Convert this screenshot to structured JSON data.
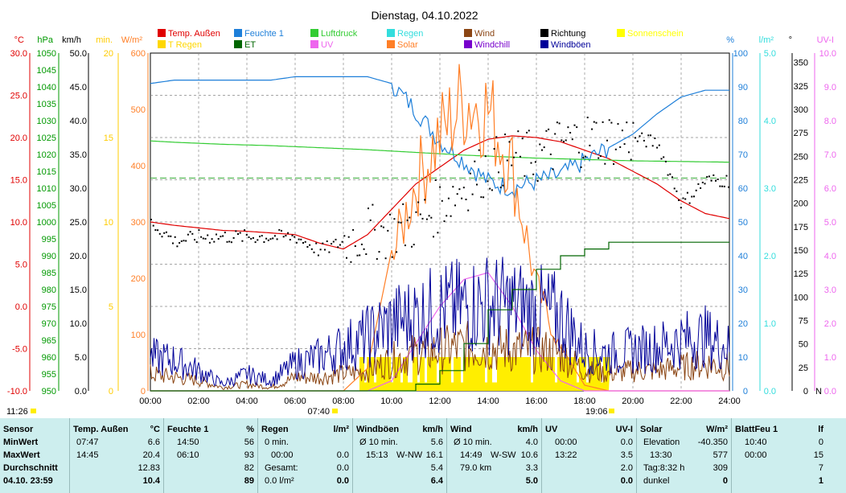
{
  "title": "Dienstag, 04.10.2022",
  "legend": [
    {
      "name": "Temp. Außen",
      "color": "#e00000"
    },
    {
      "name": "Feuchte 1",
      "color": "#1e7fd9"
    },
    {
      "name": "Luftdruck",
      "color": "#33cc33"
    },
    {
      "name": "Regen",
      "color": "#33dddd"
    },
    {
      "name": "Wind",
      "color": "#8b4513"
    },
    {
      "name": "Richtung",
      "color": "#000000"
    },
    {
      "name": "Sonnenschein",
      "color": "#ffff00"
    },
    {
      "name": "T Regen",
      "color": "#ffd700"
    },
    {
      "name": "ET",
      "color": "#006600"
    },
    {
      "name": "UV",
      "color": "#ee66ee"
    },
    {
      "name": "Solar",
      "color": "#ff7f27"
    },
    {
      "name": "Windchill",
      "color": "#7700cc"
    },
    {
      "name": "Windböen",
      "color": "#000099"
    }
  ],
  "axes": {
    "temp": {
      "unit": "°C",
      "color": "#e00000",
      "ticks": [
        "30.0",
        "25.0",
        "20.0",
        "15.0",
        "10.0",
        "5.0",
        "0.0",
        "-5.0",
        "-10.0"
      ]
    },
    "press": {
      "unit": "hPa",
      "color": "#009900",
      "ticks": [
        "1050",
        "1045",
        "1040",
        "1035",
        "1030",
        "1025",
        "1020",
        "1015",
        "1010",
        "1005",
        "1000",
        "995",
        "990",
        "985",
        "980",
        "975",
        "970",
        "965",
        "960",
        "955",
        "950"
      ]
    },
    "wind": {
      "unit": "km/h",
      "color": "#000000",
      "ticks": [
        "50.0",
        "45.0",
        "40.0",
        "35.0",
        "30.0",
        "25.0",
        "20.0",
        "15.0",
        "10.0",
        "5.0",
        "0.0"
      ]
    },
    "min": {
      "unit": "min.",
      "color": "#ffcc00",
      "ticks": [
        "20",
        "15",
        "10",
        "5",
        "0"
      ]
    },
    "solar": {
      "unit": "W/m²",
      "color": "#ff7f27",
      "ticks": [
        "600",
        "500",
        "400",
        "300",
        "200",
        "100",
        "0"
      ]
    },
    "hum": {
      "unit": "%",
      "color": "#1e7fd9",
      "ticks": [
        "100",
        "90",
        "80",
        "70",
        "60",
        "50",
        "40",
        "30",
        "20",
        "10",
        "0"
      ]
    },
    "rain": {
      "unit": "l/m²",
      "color": "#33dddd",
      "ticks": [
        "5.0",
        "4.0",
        "3.0",
        "2.0",
        "1.0",
        "0.0"
      ]
    },
    "dir": {
      "unit": "°",
      "color": "#000000",
      "ticks": [
        "350",
        "325",
        "300",
        "275",
        "250",
        "225",
        "200",
        "175",
        "150",
        "125",
        "100",
        "75",
        "50",
        "25",
        "0"
      ],
      "end_label": "N"
    },
    "uv": {
      "unit": "UV-I",
      "color": "#ee66ee",
      "ticks": [
        "10.0",
        "9.0",
        "8.0",
        "7.0",
        "6.0",
        "5.0",
        "4.0",
        "3.0",
        "2.0",
        "1.0",
        "0.0"
      ]
    },
    "time_ticks": [
      "00:00",
      "02:00",
      "04:00",
      "06:00",
      "08:00",
      "10:00",
      "12:00",
      "14:00",
      "16:00",
      "18:00",
      "20:00",
      "22:00",
      "24:00"
    ]
  },
  "sun_marks": {
    "left": "11:26",
    "rise": "07:40",
    "set": "19:06"
  },
  "chart_data": {
    "type": "line",
    "x": [
      "00:00",
      "01:00",
      "02:00",
      "03:00",
      "04:00",
      "05:00",
      "06:00",
      "07:00",
      "08:00",
      "09:00",
      "10:00",
      "11:00",
      "12:00",
      "13:00",
      "14:00",
      "15:00",
      "16:00",
      "17:00",
      "18:00",
      "19:00",
      "20:00",
      "21:00",
      "22:00",
      "23:00",
      "24:00"
    ],
    "series": [
      {
        "name": "Temp. Außen",
        "axis": "°C",
        "values": [
          10.0,
          9.6,
          9.3,
          9.0,
          8.9,
          8.7,
          8.5,
          7.5,
          6.8,
          8.5,
          11.5,
          14.5,
          16.5,
          18.5,
          19.8,
          20.2,
          20.0,
          19.5,
          18.5,
          17.5,
          16.0,
          14.5,
          12.5,
          11.0,
          10.4
        ]
      },
      {
        "name": "Feuchte 1",
        "axis": "%",
        "values": [
          91,
          92,
          92,
          92,
          92,
          92,
          93,
          93,
          93,
          93,
          91,
          83,
          74,
          68,
          62,
          60,
          62,
          64,
          68,
          72,
          76,
          82,
          87,
          89,
          89
        ]
      },
      {
        "name": "Luftdruck",
        "axis": "hPa",
        "values": [
          1024.0,
          1023.6,
          1023.3,
          1023.0,
          1022.8,
          1022.6,
          1022.3,
          1022.0,
          1021.7,
          1021.4,
          1021.0,
          1020.6,
          1020.2,
          1019.8,
          1019.5,
          1019.2,
          1018.9,
          1018.7,
          1018.5,
          1018.3,
          1018.1,
          1018.0,
          1017.9,
          1017.8,
          1017.7
        ]
      },
      {
        "name": "Solar",
        "axis": "W/m²",
        "values": [
          0,
          0,
          0,
          0,
          0,
          0,
          0,
          0,
          0,
          40,
          250,
          400,
          490,
          560,
          540,
          430,
          200,
          80,
          10,
          0,
          0,
          0,
          0,
          0,
          0
        ]
      },
      {
        "name": "UV",
        "axis": "UV-I",
        "values": [
          0,
          0,
          0,
          0,
          0,
          0,
          0,
          0,
          0,
          0,
          0.3,
          1.4,
          2.5,
          3.3,
          3.5,
          2.5,
          1.2,
          0.3,
          0,
          0,
          0,
          0,
          0,
          0,
          0
        ]
      },
      {
        "name": "Wind",
        "axis": "km/h",
        "values": [
          2.5,
          2.0,
          1.5,
          0.5,
          1.0,
          0.5,
          2.0,
          2.0,
          2.5,
          3.0,
          4.5,
          5.5,
          6.0,
          6.5,
          6.5,
          6.0,
          6.0,
          5.5,
          3.0,
          2.5,
          3.0,
          3.0,
          3.5,
          4.0,
          3.5
        ]
      },
      {
        "name": "Windböen",
        "axis": "km/h",
        "values": [
          5.0,
          4.5,
          3.0,
          1.0,
          2.5,
          1.5,
          4.0,
          5.0,
          6.5,
          8.0,
          10.0,
          11.0,
          12.0,
          12.5,
          13.0,
          12.5,
          12.0,
          11.0,
          6.0,
          5.5,
          6.0,
          6.5,
          7.5,
          8.0,
          6.4
        ]
      },
      {
        "name": "Richtung",
        "axis": "°",
        "values": [
          180,
          160,
          165,
          165,
          165,
          165,
          165,
          150,
          160,
          170,
          170,
          180,
          200,
          220,
          240,
          250,
          250,
          265,
          270,
          270,
          270,
          265,
          200,
          225,
          225
        ]
      },
      {
        "name": "ET",
        "axis": "l/m²",
        "values": [
          0,
          0,
          0,
          0,
          0,
          0,
          0,
          0,
          0,
          0,
          0,
          0.1,
          0.3,
          0.7,
          1.2,
          1.5,
          1.8,
          2.0,
          2.1,
          2.2,
          2.2,
          2.2,
          2.2,
          2.2,
          2.2
        ]
      }
    ],
    "sunshine_minutes": {
      "start": "08:40",
      "end": "19:00",
      "approx_minutes_per_interval": 2
    }
  },
  "stats": {
    "sensor": {
      "h": "Sensor",
      "r1": "MinWert",
      "r2": "MaxWert",
      "r3": "Durchschnitt",
      "r4": "04.10. 23:59"
    },
    "temp": {
      "h": "Temp. Außen",
      "u": "°C",
      "r1t": "07:47",
      "r1v": "6.6",
      "r2t": "14:45",
      "r2v": "20.4",
      "r3v": "12.83",
      "r4v": "10.4"
    },
    "hum": {
      "h": "Feuchte 1",
      "u": "%",
      "r1t": "14:50",
      "r1v": "56",
      "r2t": "06:10",
      "r2v": "93",
      "r3v": "82",
      "r4v": "89"
    },
    "rain": {
      "h": "Regen",
      "u": "l/m²",
      "r1t": "0 min.",
      "r1v": "",
      "r2t": "00:00",
      "r2v": "0.0",
      "r3t": "Gesamt:",
      "r3v": "0.0",
      "r4t": "0.0 l/m²",
      "r4v": "0.0"
    },
    "gust": {
      "h": "Windböen",
      "u": "km/h",
      "r1t": "Ø 10 min.",
      "r1v": "5.6",
      "r2t": "15:13",
      "r2m": "W-NW",
      "r2v": "16.1",
      "r3v": "5.4",
      "r4v": "6.4"
    },
    "wind": {
      "h": "Wind",
      "u": "km/h",
      "r1t": "Ø 10 min.",
      "r1v": "4.0",
      "r2t": "14:49",
      "r2m": "W-SW",
      "r2v": "10.6",
      "r3t": "79.0 km",
      "r3v": "3.3",
      "r4v": "5.0"
    },
    "uv": {
      "h": "UV",
      "u": "UV-I",
      "r1t": "00:00",
      "r1v": "0.0",
      "r2t": "13:22",
      "r2v": "3.5",
      "r3v": "2.0",
      "r4v": "0.0"
    },
    "solar": {
      "h": "Solar",
      "u": "W/m²",
      "r1t": "Elevation",
      "r1v": "-40.350",
      "r2t": "13:30",
      "r2v": "577",
      "r3t": "Tag:8:32 h",
      "r3v": "309",
      "r4t": "dunkel",
      "r4v": "0"
    },
    "leaf": {
      "h": "BlattFeu 1",
      "u": "lf",
      "r1t": "10:40",
      "r1v": "0",
      "r2t": "00:00",
      "r2v": "15",
      "r3v": "7",
      "r4v": "1"
    }
  }
}
